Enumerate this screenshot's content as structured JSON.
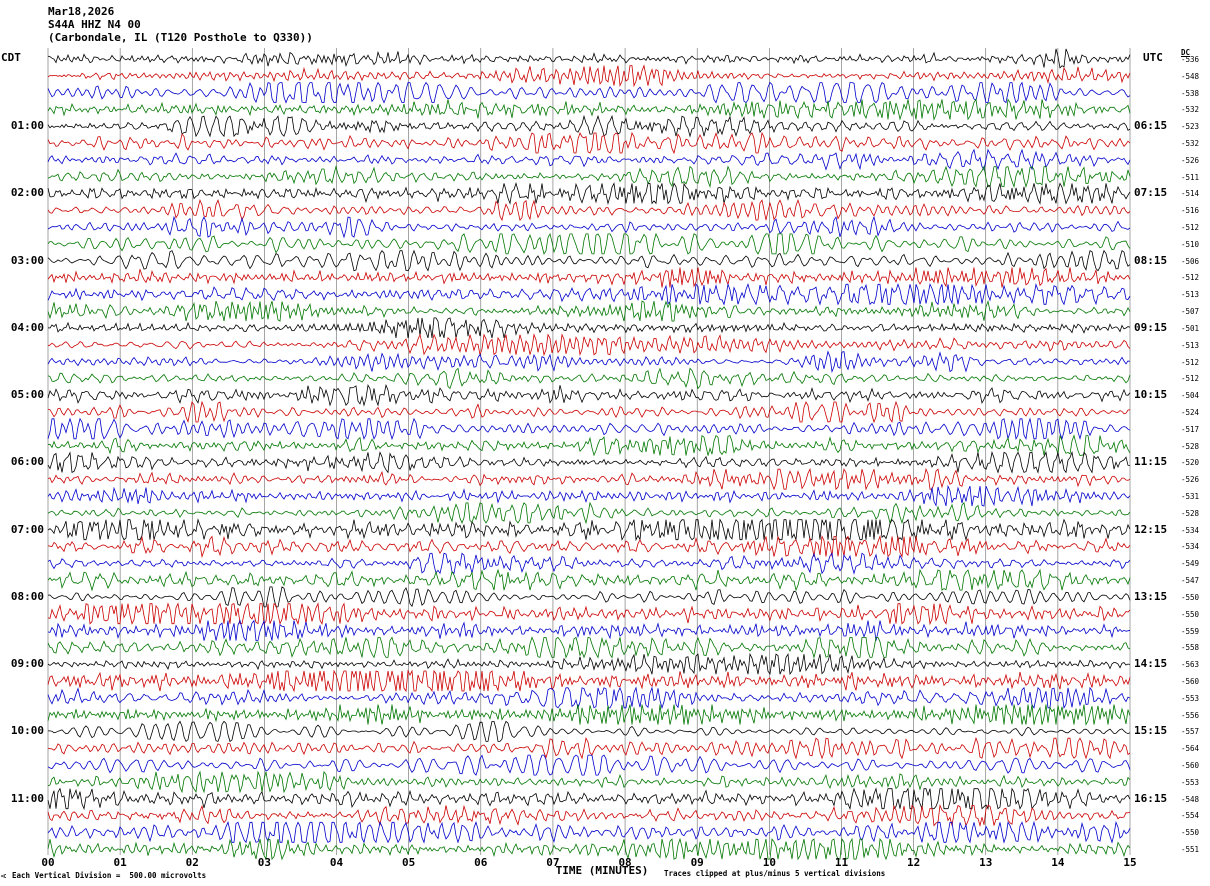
{
  "header": {
    "date": "Mar18,2026",
    "station_line": "S44A HHZ N4 00",
    "site_line": "(Carbondale, IL (T120 Posthole to Q330))"
  },
  "axes": {
    "left_header": "CDT",
    "right_header": "UTC",
    "dc_header": "DC",
    "x_ticks": [
      "00",
      "01",
      "02",
      "03",
      "04",
      "05",
      "06",
      "07",
      "08",
      "09",
      "10",
      "11",
      "12",
      "13",
      "14",
      "15"
    ],
    "x_label": "TIME (MINUTES)",
    "scale_note": "Each Vertical Division =  500.00 microvolts",
    "clip_note": "Traces clipped at plus/minus 5 vertical divisions",
    "logo_mark": "A"
  },
  "left_times": [
    "01:00",
    "02:00",
    "03:00",
    "04:00",
    "05:00",
    "06:00",
    "07:00",
    "08:00",
    "09:00",
    "10:00",
    "11:00"
  ],
  "right_times": [
    "06:15",
    "07:15",
    "08:15",
    "09:15",
    "10:15",
    "11:15",
    "12:15",
    "13:15",
    "14:15",
    "15:15",
    "16:15"
  ],
  "dc_values": [
    -536,
    -548,
    -538,
    -532,
    -523,
    -532,
    -526,
    -511,
    -514,
    -516,
    -512,
    -510,
    -506,
    -512,
    -513,
    -507,
    -501,
    -513,
    -512,
    -512,
    -504,
    -524,
    -517,
    -528,
    -520,
    -526,
    -531,
    -528,
    -534,
    -534,
    -549,
    -547,
    -550,
    -550,
    -559,
    -558,
    -563,
    -560,
    -553,
    -556,
    -557,
    -564,
    -560,
    -553,
    -548,
    -554,
    -550,
    -551
  ],
  "colors": {
    "trace_cycle": [
      "#000000",
      "#cc0000",
      "#0000cc",
      "#007700"
    ],
    "grid": "#6a6a6a",
    "background": "#ffffff"
  },
  "seed": 20260318,
  "chart_data": {
    "type": "line",
    "subtype": "seismogram-helicorder",
    "title": "S44A HHZ N4 00 (Carbondale, IL (T120 Posthole to Q330))",
    "date": "Mar18,2026",
    "station": "S44A",
    "channel": "HHZ",
    "network": "N4",
    "location_code": "00",
    "site": "Carbondale, IL",
    "instrument": "T120 Posthole to Q330",
    "xlabel": "TIME (MINUTES)",
    "x_range": [
      0,
      15
    ],
    "x_tick_interval": 1,
    "rows": 48,
    "minutes_per_row": 15,
    "rows_per_hour": 4,
    "timezone_left": "CDT",
    "timezone_right": "UTC",
    "utc_offset_hours": 5,
    "row_start_times_cdt": [
      "00:00",
      "00:15",
      "00:30",
      "00:45",
      "01:00",
      "01:15",
      "01:30",
      "01:45",
      "02:00",
      "02:15",
      "02:30",
      "02:45",
      "03:00",
      "03:15",
      "03:30",
      "03:45",
      "04:00",
      "04:15",
      "04:30",
      "04:45",
      "05:00",
      "05:15",
      "05:30",
      "05:45",
      "06:00",
      "06:15",
      "06:30",
      "06:45",
      "07:00",
      "07:15",
      "07:30",
      "07:45",
      "08:00",
      "08:15",
      "08:30",
      "08:45",
      "09:00",
      "09:15",
      "09:30",
      "09:45",
      "10:00",
      "10:15",
      "10:30",
      "10:45",
      "11:00",
      "11:15",
      "11:30",
      "11:45"
    ],
    "trace_color_cycle": [
      "black",
      "red",
      "blue",
      "green"
    ],
    "dc_offsets": [
      -536,
      -548,
      -538,
      -532,
      -523,
      -532,
      -526,
      -511,
      -514,
      -516,
      -512,
      -510,
      -506,
      -512,
      -513,
      -507,
      -501,
      -513,
      -512,
      -512,
      -504,
      -524,
      -517,
      -528,
      -520,
      -526,
      -531,
      -528,
      -534,
      -534,
      -549,
      -547,
      -550,
      -550,
      -559,
      -558,
      -563,
      -560,
      -553,
      -556,
      -557,
      -564,
      -560,
      -553,
      -548,
      -554,
      -550,
      -551
    ],
    "vertical_division_microvolts": 500.0,
    "clip_divisions": 5,
    "waveform_note": "continuous ambient seismic noise (microseism), typical amplitude ~1-2 vertical divisions; individual sample values not labeled on plot"
  }
}
